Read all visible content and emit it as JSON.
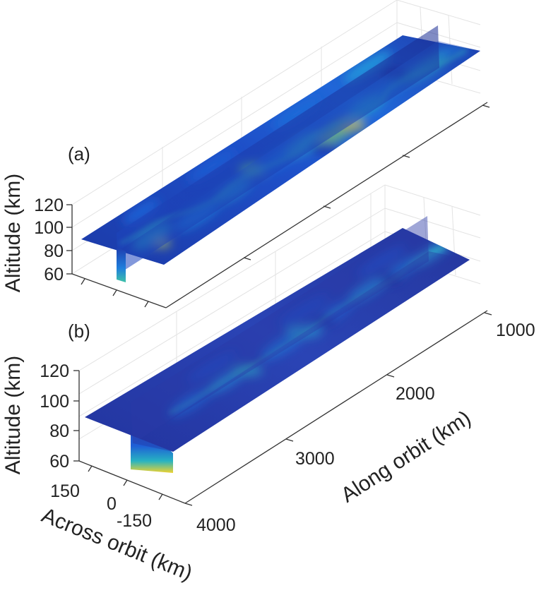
{
  "chart_data": {
    "type": "heatmap",
    "subtype": "3d-orthogonal-slices",
    "colormap": "parula",
    "colormap_stops": [
      "#1b2f9c",
      "#1f57d6",
      "#1c86e0",
      "#27b0c4",
      "#56c98f",
      "#b7d14a",
      "#f5d22c"
    ],
    "grid": true,
    "x_axis": {
      "label": "Along orbit (km)",
      "ticks": [
        1000,
        2000,
        3000,
        4000
      ],
      "tick_labels": [
        "1000",
        "2000",
        "3000",
        "4000"
      ]
    },
    "y_axis": {
      "label": "Across orbit (km)",
      "ticks": [
        150,
        0,
        -150
      ],
      "tick_labels": [
        "150",
        "0",
        "-150"
      ]
    },
    "z_axis": {
      "label": "Altitude (km)",
      "ticks": [
        60,
        80,
        100,
        120
      ],
      "tick_labels": [
        "60",
        "80",
        "100",
        "120"
      ]
    },
    "panels": [
      {
        "label": "(a)",
        "z_label": "Altitude (km)",
        "z_tick_labels": [
          "120",
          "100",
          "80",
          "60"
        ],
        "intensity": "high"
      },
      {
        "label": "(b)",
        "z_label": "Altitude (km)",
        "z_tick_labels": [
          "120",
          "100",
          "80",
          "60"
        ],
        "intensity": "low"
      }
    ]
  }
}
